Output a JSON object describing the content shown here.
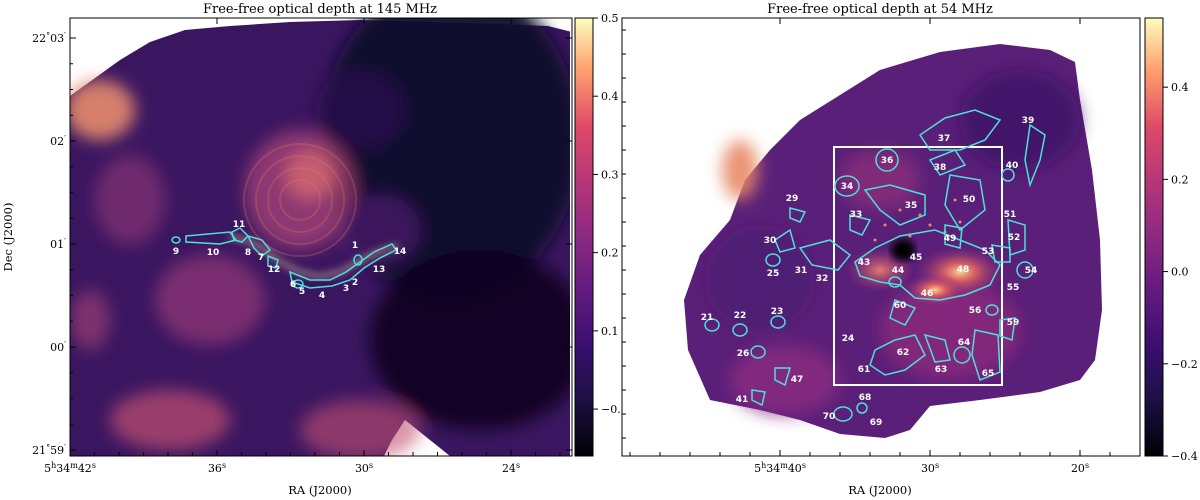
{
  "chart_data": [
    {
      "type": "heatmap",
      "title": "Free-free optical depth at 145 MHz",
      "xlabel": "RA (J2000)",
      "ylabel": "Dec (J2000)",
      "x_ticks": [
        {
          "label": "5h34m42s",
          "ra_sec": 42,
          "parts": [
            "5",
            "h",
            "34",
            "m",
            "42",
            "s"
          ]
        },
        {
          "label": "36s",
          "ra_sec": 36,
          "parts": [
            "36",
            "s"
          ]
        },
        {
          "label": "30s",
          "ra_sec": 30,
          "parts": [
            "30",
            "s"
          ]
        },
        {
          "label": "24s",
          "ra_sec": 24,
          "parts": [
            "24",
            "s"
          ]
        }
      ],
      "x_ticks_prefix": "5h34m",
      "y_ticks": [
        {
          "label": "22°03′",
          "dec_arcmin": 3,
          "parts": [
            "22",
            "°",
            "03",
            "′"
          ]
        },
        {
          "label": "02′",
          "dec_arcmin": 2,
          "parts": [
            "02",
            "′"
          ]
        },
        {
          "label": "01′",
          "dec_arcmin": 1,
          "parts": [
            "01",
            "′"
          ]
        },
        {
          "label": "00′",
          "dec_arcmin": 0,
          "parts": [
            "00",
            "′"
          ]
        },
        {
          "label": "21°59′",
          "dec_arcmin": -1,
          "parts": [
            "21",
            "°",
            "59",
            "′"
          ]
        }
      ],
      "colorbar": {
        "colormap": "magma",
        "range": [
          -0.06,
          0.5
        ],
        "tick_values": [
          -0.0,
          0.1,
          0.2,
          0.3,
          0.4,
          0.5
        ],
        "tick_labels": [
          "−0.0",
          "0.1",
          "0.2",
          "0.3",
          "0.4",
          "0.5"
        ]
      },
      "region_labels": [
        "1",
        "2",
        "3",
        "4",
        "5",
        "6",
        "7",
        "8",
        "9",
        "10",
        "11",
        "12",
        "13",
        "14"
      ],
      "contour_color": "#4ee0d8"
    },
    {
      "type": "heatmap",
      "title": "Free-free optical depth at 54 MHz",
      "xlabel": "RA (J2000)",
      "ylabel": "",
      "x_ticks": [
        {
          "label": "5h34m40s",
          "ra_sec": 40,
          "parts": [
            "5",
            "h",
            "34",
            "m",
            "40",
            "s"
          ]
        },
        {
          "label": "30s",
          "ra_sec": 30,
          "parts": [
            "30",
            "s"
          ]
        },
        {
          "label": "20s",
          "ra_sec": 20,
          "parts": [
            "20",
            "s"
          ]
        }
      ],
      "colorbar": {
        "colormap": "magma",
        "range": [
          -0.4,
          0.55
        ],
        "tick_values": [
          -0.4,
          -0.2,
          0.0,
          0.2,
          0.4
        ],
        "tick_labels": [
          "−0.4",
          "−0.2",
          "0.0",
          "0.2",
          "0.4"
        ]
      },
      "region_labels": [
        "21",
        "22",
        "23",
        "24",
        "25",
        "26",
        "29",
        "30",
        "31",
        "32",
        "33",
        "34",
        "35",
        "36",
        "37",
        "38",
        "39",
        "40",
        "41",
        "43",
        "44",
        "45",
        "46",
        "47",
        "48",
        "49",
        "50",
        "51",
        "52",
        "53",
        "54",
        "55",
        "56",
        "59",
        "60",
        "61",
        "62",
        "63",
        "64",
        "65",
        "68",
        "69",
        "70"
      ],
      "contour_color": "#4ee0d8",
      "box_color": "#ffffff"
    }
  ]
}
